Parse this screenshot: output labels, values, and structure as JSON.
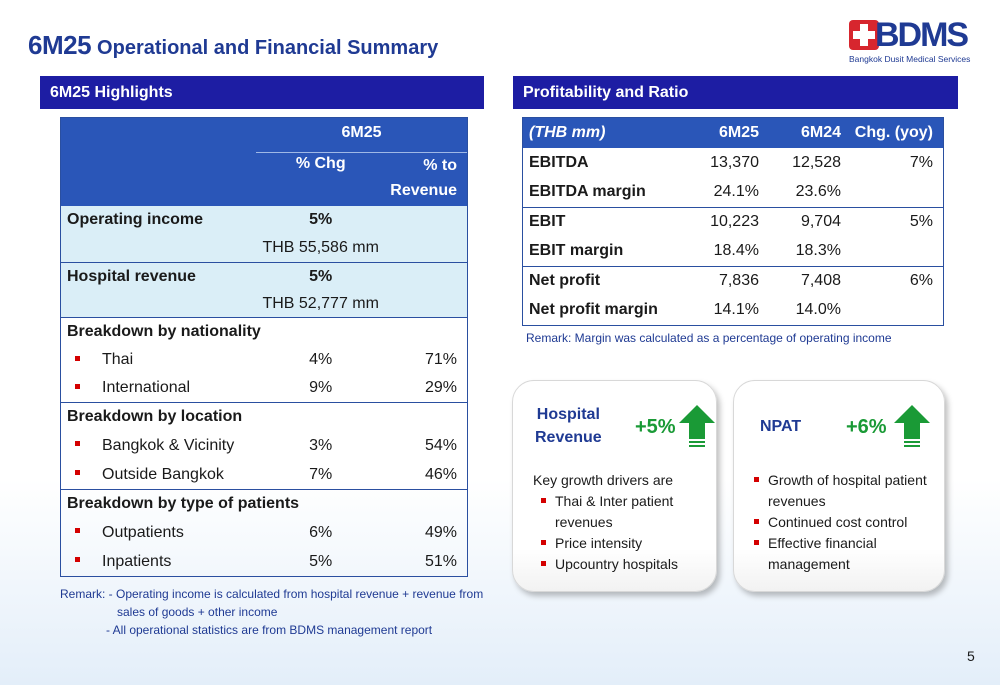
{
  "title": {
    "prefix": "6M25",
    "rest": "Operational and Financial Summary"
  },
  "logo": {
    "word": "BDMS",
    "sub": "Bangkok Dusit Medical Services",
    "cross_color": "#d7262e"
  },
  "left_section": {
    "title": "6M25 Highlights"
  },
  "right_section": {
    "title": "Profitability and Ratio"
  },
  "highlights": {
    "head_period": "6M25",
    "head_chg": "% Chg",
    "head_rev_1": "% to",
    "head_rev_2": "Revenue",
    "operating_income": {
      "label": "Operating income",
      "chg": "5%",
      "value": "THB 55,586 mm"
    },
    "hospital_revenue": {
      "label": "Hospital revenue",
      "chg": "5%",
      "value": "THB 52,777 mm"
    },
    "nationality": {
      "label": "Breakdown by nationality",
      "rows": [
        {
          "label": "Thai",
          "chg": "4%",
          "rev": "71%"
        },
        {
          "label": "International",
          "chg": "9%",
          "rev": "29%"
        }
      ]
    },
    "location": {
      "label": "Breakdown by location",
      "rows": [
        {
          "label": "Bangkok & Vicinity",
          "chg": "3%",
          "rev": "54%"
        },
        {
          "label": "Outside Bangkok",
          "chg": "7%",
          "rev": "46%"
        }
      ]
    },
    "patients": {
      "label": "Breakdown by type of patients",
      "rows": [
        {
          "label": "Outpatients",
          "chg": "6%",
          "rev": "49%"
        },
        {
          "label": "Inpatients",
          "chg": "5%",
          "rev": "51%"
        }
      ]
    },
    "remark_1": "Remark:  - Operating income is calculated from hospital revenue + revenue from",
    "remark_2": "sales of goods + other income",
    "remark_3": "-  All operational statistics are from BDMS management report"
  },
  "profitability": {
    "head": [
      "(THB mm)",
      "6M25",
      "6M24",
      "Chg. (yoy)"
    ],
    "rows": [
      {
        "label": "EBITDA",
        "a": "13,370",
        "b": "12,528",
        "chg": "7%"
      },
      {
        "label": "EBITDA margin",
        "a": "24.1%",
        "b": "23.6%",
        "chg": ""
      },
      {
        "label": "EBIT",
        "a": "10,223",
        "b": "9,704",
        "chg": "5%"
      },
      {
        "label": "EBIT margin",
        "a": "18.4%",
        "b": "18.3%",
        "chg": ""
      },
      {
        "label": "Net profit",
        "a": "7,836",
        "b": "7,408",
        "chg": "6%"
      },
      {
        "label": "Net profit margin",
        "a": "14.1%",
        "b": "14.0%",
        "chg": ""
      }
    ],
    "remark": "Remark:  Margin was calculated as a percentage of operating income"
  },
  "card_hospital": {
    "title_1": "Hospital",
    "title_2": "Revenue",
    "pct": "+5%",
    "intro": "Key growth drivers are",
    "items": [
      "Thai & Inter patient",
      "revenues",
      "Price intensity",
      "Upcountry hospitals"
    ]
  },
  "card_npat": {
    "title": "NPAT",
    "pct": "+6%",
    "items": [
      "Growth of hospital patient",
      "revenues",
      "Continued cost control",
      "Effective financial",
      "management"
    ]
  },
  "page_number": "5",
  "colors": {
    "navy": "#1d1da3",
    "table_head": "#2a56b8",
    "light_row": "#daeef7",
    "green": "#1a9a36",
    "bullet": "#d40000"
  }
}
